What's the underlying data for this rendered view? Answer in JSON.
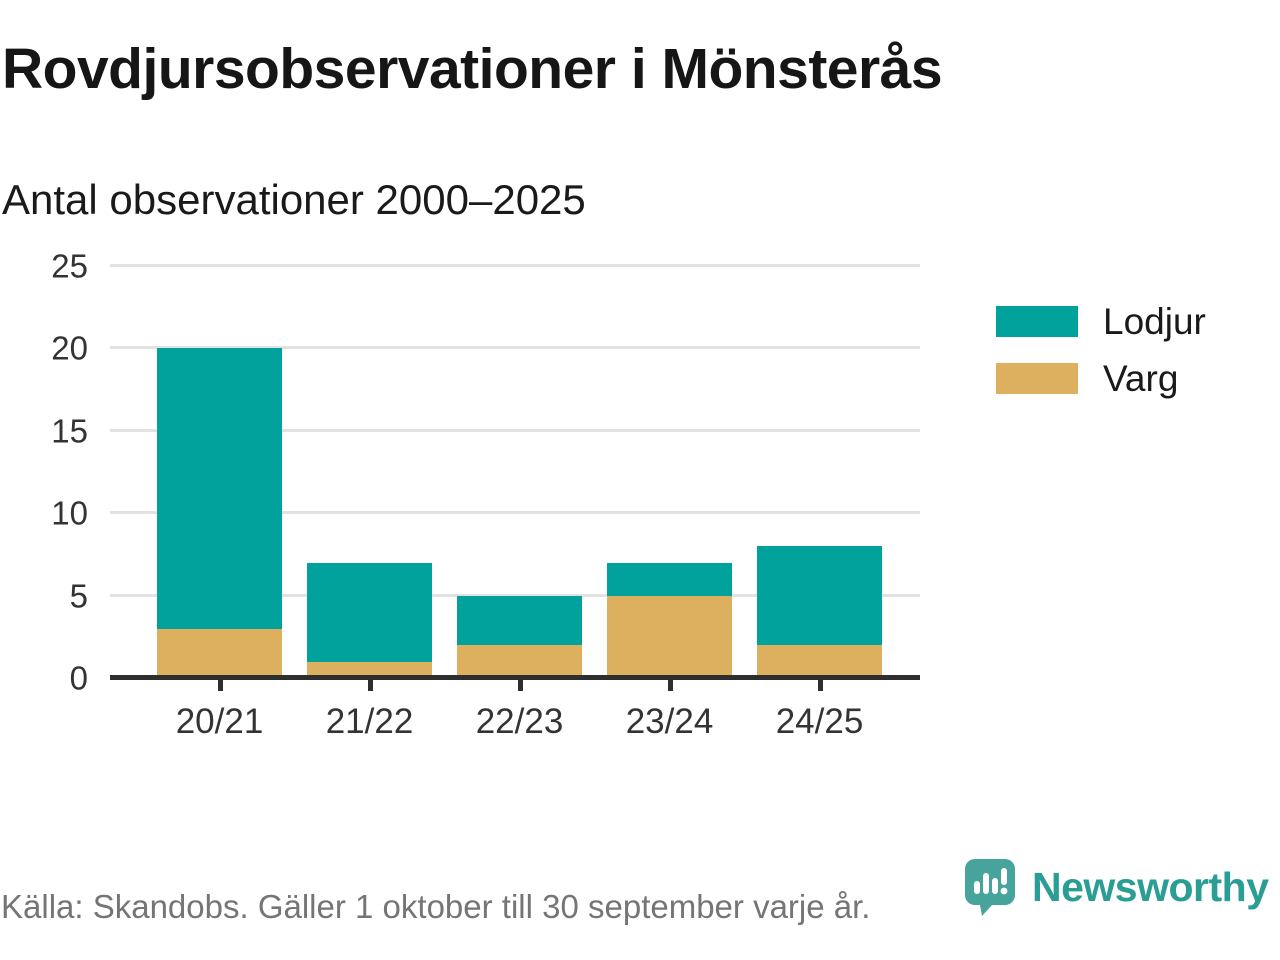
{
  "header": {
    "title": "Rovdjursobservationer i Mönsterås",
    "subtitle": "Antal observationer 2000–2025"
  },
  "chart_data": {
    "type": "bar",
    "stacked": true,
    "title": "Rovdjursobservationer i Mönsterås",
    "subtitle": "Antal observationer 2000–2025",
    "categories": [
      "20/21",
      "21/22",
      "22/23",
      "23/24",
      "24/25"
    ],
    "series": [
      {
        "name": "Lodjur",
        "color": "#00a29b",
        "values": [
          17,
          6,
          3,
          2,
          6
        ]
      },
      {
        "name": "Varg",
        "color": "#dcb05f",
        "values": [
          3,
          1,
          2,
          5,
          2
        ]
      }
    ],
    "stack_bottom_to_top": [
      "Varg",
      "Lodjur"
    ],
    "totals": [
      20,
      7,
      5,
      7,
      8
    ],
    "xlabel": "",
    "ylabel": "",
    "ylim": [
      0,
      25
    ],
    "yticks": [
      0,
      5,
      10,
      15,
      20,
      25
    ],
    "grid": true,
    "legend_position": "right"
  },
  "legend": {
    "items": [
      {
        "label": "Lodjur",
        "color": "#00a29b"
      },
      {
        "label": "Varg",
        "color": "#dcb05f"
      }
    ]
  },
  "footer": {
    "source": "Källa: Skandobs. Gäller 1 oktober till 30 september varje år.",
    "brand_name": "Newsworthy"
  },
  "colors": {
    "lodjur": "#00a29b",
    "varg": "#dcb05f",
    "grid": "#e2e2e2",
    "axis": "#2e2e2e",
    "tick_label": "#333333",
    "title_text": "#161616",
    "footer_text": "#757575",
    "logo_bubble": "#46a49c",
    "logo_text": "#2a9d94"
  }
}
